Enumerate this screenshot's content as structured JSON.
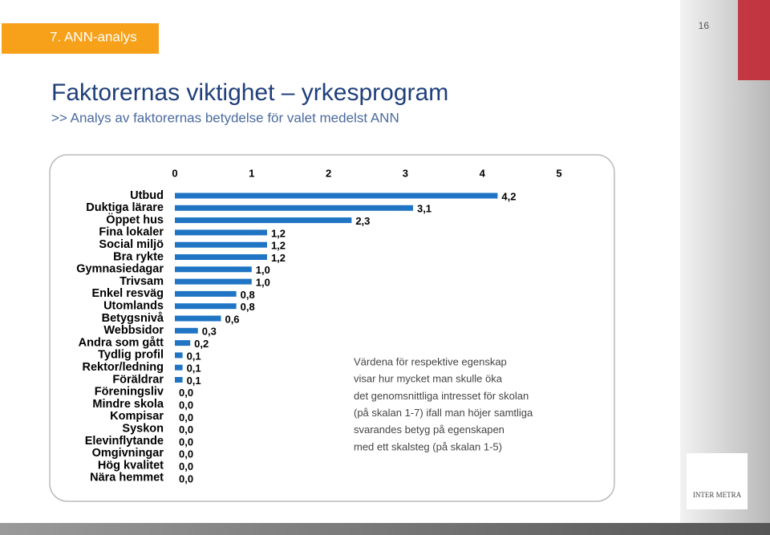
{
  "section": "7. ANN-analys",
  "page_number": "16",
  "logo": "INTER METRA",
  "chart_data": {
    "type": "bar",
    "orientation": "horizontal",
    "title": "Faktorernas viktighet – yrkesprogram",
    "subtitle": ">> Analys av faktorernas betydelse för valet medelst ANN",
    "annotation": [
      "Värdena för respektive egenskap",
      "visar hur mycket man skulle öka",
      "det genomsnittliga intresset  för skolan",
      "(på skalan 1-7) ifall man höjer  samtliga",
      "svarandes betyg på egenskapen",
      "med ett skalsteg (på skalan 1-5)"
    ],
    "categories": [
      "Utbud",
      "Duktiga lärare",
      "Öppet hus",
      "Fina lokaler",
      "Social miljö",
      "Bra rykte",
      "Gymnasiedagar",
      "Trivsam",
      "Enkel resväg",
      "Utomlands",
      "Betygsnivå",
      "Webbsidor",
      "Andra som gått",
      "Tydlig profil",
      "Rektor/ledning",
      "Föräldrar",
      "Föreningsliv",
      "Mindre skola",
      "Kompisar",
      "Syskon",
      "Elevinflytande",
      "Omgivningar",
      "Hög kvalitet",
      "Nära hemmet"
    ],
    "values": [
      4.2,
      3.1,
      2.3,
      1.2,
      1.2,
      1.2,
      1.0,
      1.0,
      0.8,
      0.8,
      0.6,
      0.3,
      0.2,
      0.1,
      0.1,
      0.1,
      0.0,
      0.0,
      0.0,
      0.0,
      0.0,
      0.0,
      0.0,
      0.0
    ],
    "value_labels": [
      "4,2",
      "3,1",
      "2,3",
      "1,2",
      "1,2",
      "1,2",
      "1,0",
      "1,0",
      "0,8",
      "0,8",
      "0,6",
      "0,3",
      "0,2",
      "0,1",
      "0,1",
      "0,1",
      "0,0",
      "0,0",
      "0,0",
      "0,0",
      "0,0",
      "0,0",
      "0,0",
      "0,0"
    ],
    "color": "#1f74c4",
    "xlim": [
      0,
      5
    ],
    "xticks": [
      0,
      1,
      2,
      3,
      4,
      5
    ]
  }
}
